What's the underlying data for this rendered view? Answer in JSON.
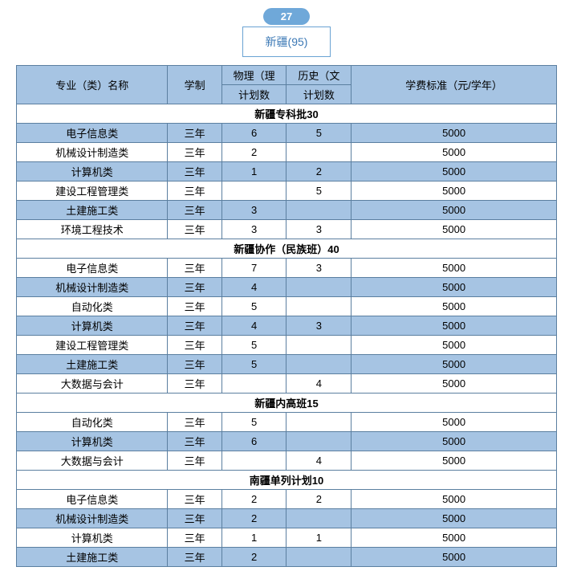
{
  "badge": {
    "number": "27",
    "label": "新疆(95)"
  },
  "header": {
    "major": "专业（类）名称",
    "duration": "学制",
    "physics": "物理（理",
    "history": "历史（文",
    "plan_count": "计划数",
    "fee": "学费标准（元/学年）"
  },
  "colors": {
    "header_bg": "#a6c4e3",
    "stripe_bg": "#a6c4e3",
    "border": "#5b7fa0",
    "badge_bg": "#6fa8d9",
    "badge_text": "#ffffff",
    "box_border": "#6aa3d3",
    "box_text": "#3b78b5"
  },
  "sections": [
    {
      "title": "新疆专科批30",
      "rows": [
        {
          "major": "电子信息类",
          "dur": "三年",
          "phy": "6",
          "his": "5",
          "fee": "5000",
          "stripe": true
        },
        {
          "major": "机械设计制造类",
          "dur": "三年",
          "phy": "2",
          "his": "",
          "fee": "5000",
          "stripe": false
        },
        {
          "major": "计算机类",
          "dur": "三年",
          "phy": "1",
          "his": "2",
          "fee": "5000",
          "stripe": true
        },
        {
          "major": "建设工程管理类",
          "dur": "三年",
          "phy": "",
          "his": "5",
          "fee": "5000",
          "stripe": false
        },
        {
          "major": "土建施工类",
          "dur": "三年",
          "phy": "3",
          "his": "",
          "fee": "5000",
          "stripe": true
        },
        {
          "major": "环境工程技术",
          "dur": "三年",
          "phy": "3",
          "his": "3",
          "fee": "5000",
          "stripe": false
        }
      ]
    },
    {
      "title": "新疆协作（民族班）40",
      "rows": [
        {
          "major": "电子信息类",
          "dur": "三年",
          "phy": "7",
          "his": "3",
          "fee": "5000",
          "stripe": false
        },
        {
          "major": "机械设计制造类",
          "dur": "三年",
          "phy": "4",
          "his": "",
          "fee": "5000",
          "stripe": true
        },
        {
          "major": "自动化类",
          "dur": "三年",
          "phy": "5",
          "his": "",
          "fee": "5000",
          "stripe": false
        },
        {
          "major": "计算机类",
          "dur": "三年",
          "phy": "4",
          "his": "3",
          "fee": "5000",
          "stripe": true
        },
        {
          "major": "建设工程管理类",
          "dur": "三年",
          "phy": "5",
          "his": "",
          "fee": "5000",
          "stripe": false
        },
        {
          "major": "土建施工类",
          "dur": "三年",
          "phy": "5",
          "his": "",
          "fee": "5000",
          "stripe": true
        },
        {
          "major": "大数据与会计",
          "dur": "三年",
          "phy": "",
          "his": "4",
          "fee": "5000",
          "stripe": false
        }
      ]
    },
    {
      "title": "新疆内高班15",
      "rows": [
        {
          "major": "自动化类",
          "dur": "三年",
          "phy": "5",
          "his": "",
          "fee": "5000",
          "stripe": false
        },
        {
          "major": "计算机类",
          "dur": "三年",
          "phy": "6",
          "his": "",
          "fee": "5000",
          "stripe": true
        },
        {
          "major": "大数据与会计",
          "dur": "三年",
          "phy": "",
          "his": "4",
          "fee": "5000",
          "stripe": false
        }
      ]
    },
    {
      "title": "南疆单列计划10",
      "rows": [
        {
          "major": "电子信息类",
          "dur": "三年",
          "phy": "2",
          "his": "2",
          "fee": "5000",
          "stripe": false
        },
        {
          "major": "机械设计制造类",
          "dur": "三年",
          "phy": "2",
          "his": "",
          "fee": "5000",
          "stripe": true
        },
        {
          "major": "计算机类",
          "dur": "三年",
          "phy": "1",
          "his": "1",
          "fee": "5000",
          "stripe": false
        },
        {
          "major": "土建施工类",
          "dur": "三年",
          "phy": "2",
          "his": "",
          "fee": "5000",
          "stripe": true
        }
      ]
    }
  ]
}
